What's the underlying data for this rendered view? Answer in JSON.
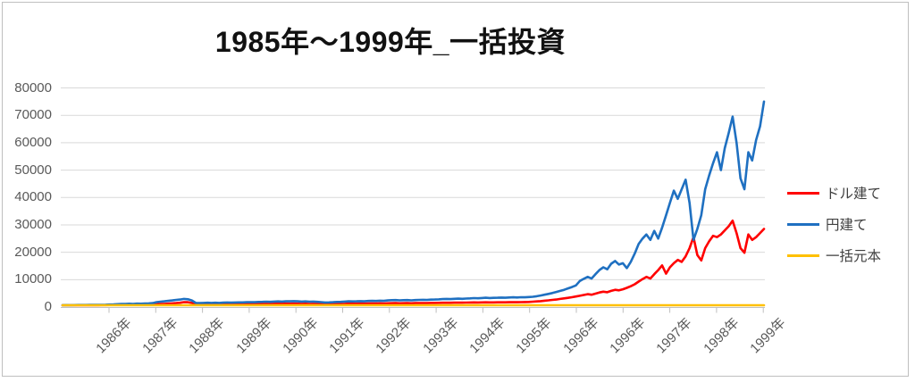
{
  "chart_data": {
    "type": "line",
    "title": "1985年～1999年_一括投資",
    "xlabel": "",
    "ylabel": "",
    "ylim": [
      0,
      80000
    ],
    "y_ticks": [
      0,
      10000,
      20000,
      30000,
      40000,
      50000,
      60000,
      70000,
      80000
    ],
    "x_tick_labels": [
      "1986年",
      "1987年",
      "1988年",
      "1989年",
      "1990年",
      "1991年",
      "1992年",
      "1993年",
      "1994年",
      "1995年",
      "1996年",
      "1996年",
      "1997年",
      "1998年",
      "1999年"
    ],
    "grid": "horizontal-only",
    "legend_position": "right",
    "x_range_note": "monthly points Jan 1985 - Dec 1999",
    "colors": {
      "grid": "#D9D9D9",
      "axis": "#BFBFBF",
      "axis_text": "#595959",
      "legend_text": "#404040",
      "title_text": "#111111",
      "border": "#BFBFBF"
    },
    "series": [
      {
        "name": "ドル建て",
        "color": "#FF0000",
        "values": [
          650,
          655,
          650,
          660,
          670,
          680,
          675,
          685,
          690,
          700,
          710,
          720,
          740,
          760,
          790,
          800,
          820,
          840,
          830,
          860,
          850,
          880,
          900,
          930,
          1000,
          1100,
          1150,
          1250,
          1350,
          1450,
          1550,
          1800,
          1750,
          1500,
          1000,
          950,
          970,
          1000,
          980,
          1010,
          990,
          1020,
          1040,
          1020,
          1050,
          1070,
          1060,
          1080,
          1100,
          1080,
          1120,
          1150,
          1170,
          1150,
          1190,
          1210,
          1190,
          1230,
          1220,
          1250,
          1220,
          1180,
          1200,
          1150,
          1170,
          1120,
          1060,
          990,
          1020,
          1050,
          1100,
          1130,
          1180,
          1230,
          1210,
          1230,
          1260,
          1240,
          1280,
          1310,
          1290,
          1330,
          1310,
          1380,
          1400,
          1420,
          1380,
          1400,
          1420,
          1380,
          1420,
          1450,
          1470,
          1450,
          1490,
          1510,
          1530,
          1560,
          1580,
          1560,
          1600,
          1620,
          1600,
          1630,
          1650,
          1680,
          1660,
          1690,
          1720,
          1680,
          1700,
          1720,
          1740,
          1720,
          1750,
          1770,
          1760,
          1800,
          1820,
          1850,
          1950,
          2050,
          2150,
          2300,
          2450,
          2600,
          2750,
          2950,
          3150,
          3350,
          3600,
          3850,
          4100,
          4400,
          4700,
          4500,
          4900,
          5300,
          5600,
          5400,
          5900,
          6300,
          6100,
          6500,
          7000,
          7600,
          8300,
          9300,
          10200,
          11000,
          10400,
          12000,
          13500,
          15200,
          12200,
          14500,
          16000,
          17200,
          16500,
          18500,
          21500,
          25500,
          19000,
          17000,
          21500,
          24000,
          26000,
          25500,
          26500,
          28000,
          29500,
          31500,
          27000,
          21500,
          19800,
          26500,
          24500,
          25500,
          27000,
          28500
        ]
      },
      {
        "name": "円建て",
        "color": "#1F70C1",
        "values": [
          700,
          710,
          700,
          720,
          740,
          760,
          750,
          770,
          780,
          800,
          830,
          860,
          900,
          950,
          1050,
          1100,
          1150,
          1200,
          1150,
          1250,
          1200,
          1300,
          1350,
          1450,
          1800,
          1950,
          2100,
          2250,
          2400,
          2600,
          2750,
          2950,
          2850,
          2400,
          1500,
          1450,
          1500,
          1550,
          1500,
          1550,
          1500,
          1600,
          1650,
          1600,
          1650,
          1700,
          1700,
          1750,
          1800,
          1750,
          1850,
          1900,
          1950,
          1900,
          2000,
          2050,
          2000,
          2100,
          2100,
          2150,
          2100,
          2000,
          2050,
          1950,
          2000,
          1900,
          1800,
          1650,
          1700,
          1750,
          1850,
          1900,
          2000,
          2100,
          2050,
          2100,
          2150,
          2100,
          2200,
          2250,
          2200,
          2300,
          2250,
          2400,
          2500,
          2550,
          2450,
          2500,
          2550,
          2450,
          2550,
          2600,
          2650,
          2600,
          2700,
          2750,
          2800,
          2900,
          2950,
          2900,
          3000,
          3050,
          3000,
          3100,
          3150,
          3250,
          3200,
          3300,
          3400,
          3300,
          3350,
          3400,
          3450,
          3400,
          3500,
          3550,
          3500,
          3600,
          3550,
          3650,
          3750,
          3950,
          4200,
          4500,
          4800,
          5100,
          5500,
          5900,
          6300,
          6800,
          7300,
          7900,
          9500,
          10300,
          11000,
          10400,
          12000,
          13500,
          14500,
          13800,
          15800,
          16800,
          15500,
          16000,
          14200,
          16500,
          19500,
          23000,
          25000,
          26500,
          24500,
          27800,
          25000,
          29000,
          33500,
          38000,
          42500,
          39500,
          43000,
          46500,
          38000,
          24500,
          28500,
          33500,
          43000,
          48000,
          52500,
          56500,
          50000,
          58000,
          63500,
          69500,
          60000,
          47000,
          43000,
          56500,
          53500,
          61000,
          66000,
          75000
        ]
      },
      {
        "name": "一括元本",
        "color": "#FFC000",
        "constant": 650,
        "points": 180
      }
    ]
  }
}
